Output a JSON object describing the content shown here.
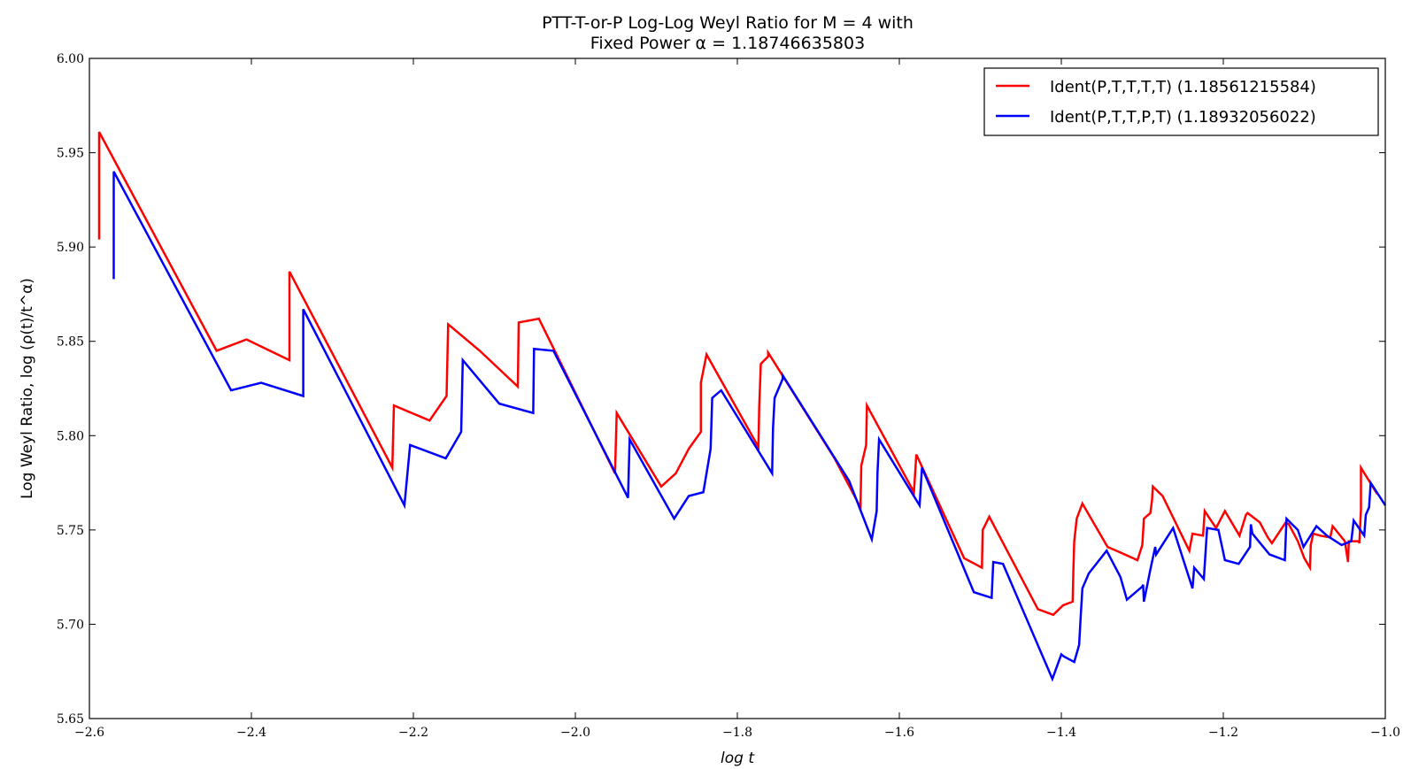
{
  "chart_data": {
    "type": "line",
    "title_line1": "PTT-T-or-P Log-Log Weyl Ratio for M = 4 with",
    "title_line2": "Fixed Power α = 1.18746635803",
    "xlabel": "log t",
    "ylabel": "Log Weyl Ratio, log (ρ(t)/t^α)",
    "xlim": [
      -2.6,
      -1.0
    ],
    "ylim": [
      5.65,
      6.0
    ],
    "xticks": [
      -2.6,
      -2.4,
      -2.2,
      -2.0,
      -1.8,
      -1.6,
      -1.4,
      -1.2,
      -1.0
    ],
    "xtick_labels": [
      "−2.6",
      "−2.4",
      "−2.2",
      "−2.0",
      "−1.8",
      "−1.6",
      "−1.4",
      "−1.2",
      "−1.0"
    ],
    "yticks": [
      5.65,
      5.7,
      5.75,
      5.8,
      5.85,
      5.9,
      5.95,
      6.0
    ],
    "ytick_labels": [
      "5.65",
      "5.70",
      "5.75",
      "5.80",
      "5.85",
      "5.90",
      "5.95",
      "6.00"
    ],
    "legend_position": "top-right",
    "series": [
      {
        "name": "Ident(P,T,T,T,T) (1.18561215584)",
        "color": "#ff0000",
        "x": [
          -2.588,
          -2.588,
          -2.443,
          -2.406,
          -2.353,
          -2.353,
          -2.226,
          -2.224,
          -2.18,
          -2.159,
          -2.157,
          -2.118,
          -2.071,
          -2.07,
          -2.045,
          -1.951,
          -1.949,
          -1.894,
          -1.876,
          -1.86,
          -1.845,
          -1.845,
          -1.838,
          -1.774,
          -1.773,
          -1.771,
          -1.762,
          -1.762,
          -1.68,
          -1.648,
          -1.647,
          -1.641,
          -1.64,
          -1.582,
          -1.579,
          -1.52,
          -1.498,
          -1.497,
          -1.489,
          -1.429,
          -1.41,
          -1.398,
          -1.386,
          -1.385,
          -1.384,
          -1.381,
          -1.374,
          -1.343,
          -1.327,
          -1.306,
          -1.3,
          -1.298,
          -1.29,
          -1.288,
          -1.287,
          -1.275,
          -1.242,
          -1.238,
          -1.225,
          -1.223,
          -1.209,
          -1.198,
          -1.18,
          -1.172,
          -1.17,
          -1.155,
          -1.145,
          -1.14,
          -1.123,
          -1.119,
          -1.108,
          -1.1,
          -1.093,
          -1.092,
          -1.089,
          -1.08,
          -1.068,
          -1.065,
          -1.05,
          -1.046,
          -1.045,
          -1.043,
          -1.033,
          -1.032,
          -1.03,
          -1.03,
          -1.01
        ],
        "y": [
          5.904,
          5.961,
          5.845,
          5.851,
          5.84,
          5.887,
          5.783,
          5.816,
          5.808,
          5.821,
          5.859,
          5.845,
          5.826,
          5.86,
          5.862,
          5.78,
          5.812,
          5.773,
          5.78,
          5.793,
          5.802,
          5.828,
          5.843,
          5.794,
          5.815,
          5.838,
          5.842,
          5.844,
          5.788,
          5.762,
          5.784,
          5.795,
          5.816,
          5.77,
          5.79,
          5.735,
          5.73,
          5.75,
          5.757,
          5.708,
          5.705,
          5.71,
          5.712,
          5.73,
          5.744,
          5.756,
          5.764,
          5.741,
          5.738,
          5.734,
          5.742,
          5.756,
          5.759,
          5.766,
          5.773,
          5.768,
          5.739,
          5.748,
          5.747,
          5.76,
          5.751,
          5.76,
          5.747,
          5.758,
          5.759,
          5.754,
          5.746,
          5.743,
          5.754,
          5.753,
          5.744,
          5.735,
          5.73,
          5.742,
          5.748,
          5.747,
          5.746,
          5.752,
          5.744,
          5.733,
          5.744,
          5.744,
          5.744,
          5.743,
          5.761,
          5.783,
          5.769
        ]
      },
      {
        "name": "Ident(P,T,T,P,T) (1.18932056022)",
        "color": "#0000ff",
        "x": [
          -2.57,
          -2.57,
          -2.425,
          -2.388,
          -2.336,
          -2.336,
          -2.211,
          -2.204,
          -2.16,
          -2.141,
          -2.139,
          -2.094,
          -2.052,
          -2.051,
          -2.027,
          -1.935,
          -1.933,
          -1.878,
          -1.86,
          -1.842,
          -1.833,
          -1.831,
          -1.82,
          -1.757,
          -1.756,
          -1.754,
          -1.744,
          -1.744,
          -1.662,
          -1.634,
          -1.628,
          -1.627,
          -1.625,
          -1.575,
          -1.572,
          -1.508,
          -1.486,
          -1.484,
          -1.472,
          -1.411,
          -1.4,
          -1.397,
          -1.384,
          -1.378,
          -1.376,
          -1.374,
          -1.366,
          -1.344,
          -1.327,
          -1.319,
          -1.3,
          -1.299,
          -1.298,
          -1.29,
          -1.284,
          -1.283,
          -1.262,
          -1.238,
          -1.236,
          -1.224,
          -1.22,
          -1.206,
          -1.198,
          -1.181,
          -1.167,
          -1.166,
          -1.164,
          -1.143,
          -1.124,
          -1.122,
          -1.108,
          -1.101,
          -1.085,
          -1.072,
          -1.054,
          -1.042,
          -1.039,
          -1.026,
          -1.024,
          -1.02,
          -1.018,
          -1.0
        ],
        "y": [
          5.883,
          5.94,
          5.824,
          5.828,
          5.821,
          5.867,
          5.763,
          5.795,
          5.788,
          5.802,
          5.84,
          5.817,
          5.812,
          5.846,
          5.845,
          5.767,
          5.798,
          5.756,
          5.768,
          5.77,
          5.793,
          5.82,
          5.824,
          5.78,
          5.804,
          5.82,
          5.83,
          5.832,
          5.776,
          5.745,
          5.76,
          5.78,
          5.798,
          5.763,
          5.783,
          5.717,
          5.714,
          5.733,
          5.732,
          5.671,
          5.684,
          5.683,
          5.68,
          5.689,
          5.705,
          5.719,
          5.727,
          5.739,
          5.725,
          5.713,
          5.72,
          5.721,
          5.712,
          5.729,
          5.741,
          5.737,
          5.751,
          5.719,
          5.73,
          5.724,
          5.751,
          5.75,
          5.734,
          5.732,
          5.741,
          5.753,
          5.748,
          5.737,
          5.734,
          5.756,
          5.75,
          5.741,
          5.752,
          5.747,
          5.742,
          5.744,
          5.755,
          5.747,
          5.758,
          5.762,
          5.775,
          5.763
        ]
      }
    ]
  }
}
